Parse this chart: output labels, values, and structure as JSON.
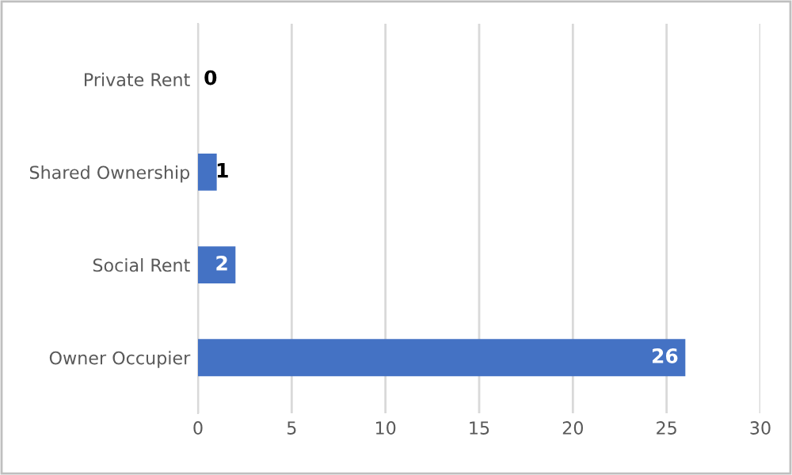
{
  "chart_data": {
    "type": "bar",
    "orientation": "horizontal",
    "categories": [
      "Private Rent",
      "Shared Ownership",
      "Social Rent",
      "Owner Occupier"
    ],
    "values": [
      0,
      1,
      2,
      26
    ],
    "color": "#4472c4",
    "xlim": [
      0,
      30
    ],
    "xticks": [
      0,
      5,
      10,
      15,
      20,
      25,
      30
    ],
    "grid": "x",
    "data_labels": true
  }
}
